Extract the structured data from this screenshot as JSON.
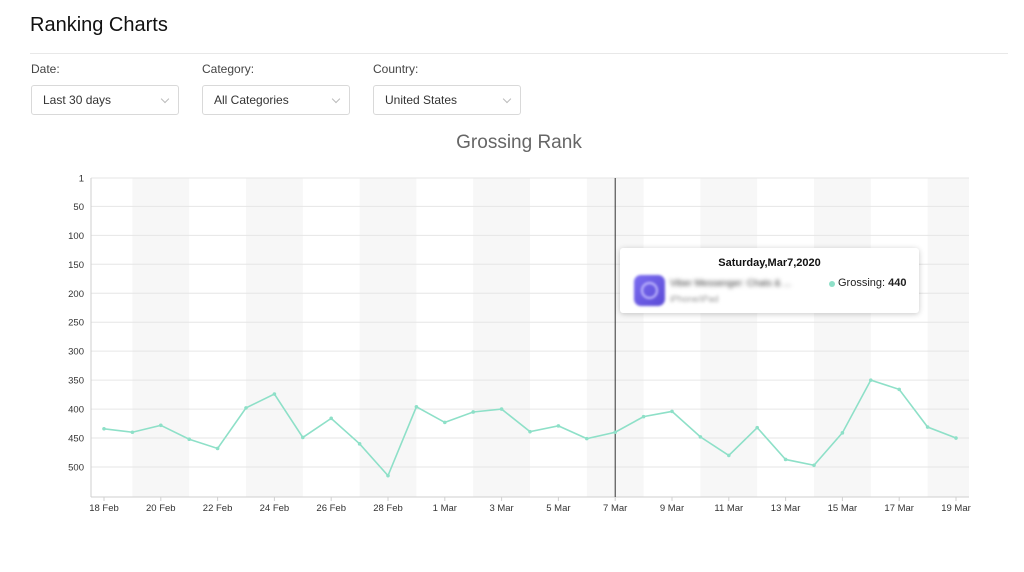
{
  "page": {
    "title": "Ranking Charts"
  },
  "filters": [
    {
      "label": "Date:",
      "value": "Last 30 days"
    },
    {
      "label": "Category:",
      "value": "All Categories"
    },
    {
      "label": "Country:",
      "value": "United States"
    }
  ],
  "tooltip": {
    "date": "Saturday,Mar7,2020",
    "app_name": "Viber Messenger: Chats & ...",
    "app_platform": "iPhone/iPad",
    "series_label": "Grossing:",
    "series_value": "440"
  },
  "colors": {
    "line": "#8ee0c8",
    "band": "#f7f7f7",
    "grid": "#e6e6e6",
    "cursor": "#333333"
  },
  "chart_data": {
    "type": "line",
    "title": "Grossing Rank",
    "y_reversed": true,
    "ylim": [
      1,
      550
    ],
    "y_ticks": [
      1,
      50,
      100,
      150,
      200,
      250,
      300,
      350,
      400,
      450,
      500
    ],
    "x_tick_labels": [
      "18 Feb",
      "20 Feb",
      "22 Feb",
      "24 Feb",
      "26 Feb",
      "28 Feb",
      "1 Mar",
      "3 Mar",
      "5 Mar",
      "7 Mar",
      "9 Mar",
      "11 Mar",
      "13 Mar",
      "15 Mar",
      "17 Mar",
      "19 Mar"
    ],
    "x": [
      "18 Feb",
      "19 Feb",
      "20 Feb",
      "21 Feb",
      "22 Feb",
      "23 Feb",
      "24 Feb",
      "25 Feb",
      "26 Feb",
      "27 Feb",
      "28 Feb",
      "29 Feb",
      "1 Mar",
      "2 Mar",
      "3 Mar",
      "4 Mar",
      "5 Mar",
      "6 Mar",
      "7 Mar",
      "8 Mar",
      "9 Mar",
      "10 Mar",
      "11 Mar",
      "12 Mar",
      "13 Mar",
      "14 Mar",
      "15 Mar",
      "16 Mar",
      "17 Mar",
      "18 Mar",
      "19 Mar"
    ],
    "series": [
      {
        "name": "Grossing",
        "values": [
          434,
          440,
          428,
          452,
          468,
          398,
          374,
          449,
          416,
          460,
          515,
          396,
          423,
          405,
          400,
          439,
          429,
          451,
          440,
          413,
          404,
          448,
          480,
          432,
          487,
          497,
          441,
          350,
          366,
          431,
          450
        ]
      }
    ],
    "grid": true,
    "highlight_x": "7 Mar"
  }
}
